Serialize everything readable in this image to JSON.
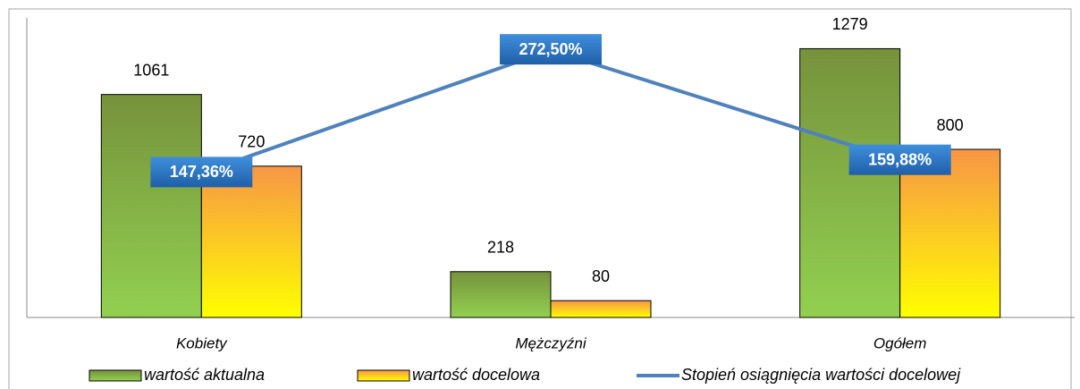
{
  "chart_data": {
    "type": "bar",
    "categories": [
      "Kobiety",
      "Mężczyźni",
      "Ogółem"
    ],
    "series": [
      {
        "name": "wartość aktualna",
        "color": "#76923c",
        "values": [
          1061,
          218,
          1279
        ]
      },
      {
        "name": "wartość docelowa",
        "color": "#f79646",
        "values": [
          720,
          80,
          800
        ]
      },
      {
        "name": "Stopień osiągnięcia wartości docelowej",
        "type": "line",
        "axis": "y2",
        "color": "#4f81bd",
        "values": [
          147.36,
          272.5,
          159.88
        ],
        "value_labels": [
          "147,36%",
          "272,50%",
          "159,88%"
        ]
      }
    ],
    "ylim": [
      0,
      1400
    ],
    "y2lim": [
      0,
      300
    ]
  }
}
